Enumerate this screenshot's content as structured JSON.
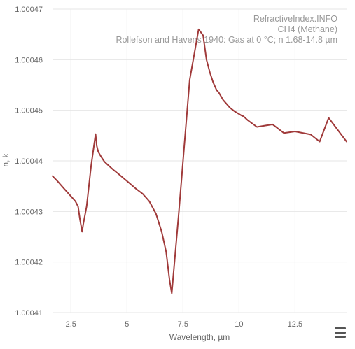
{
  "chart_data": {
    "type": "line",
    "watermark": [
      "RefractiveIndex.INFO",
      "CH4 (Methane)",
      "Rollefson and Havens 1940: Gas at 0 °C; n 1.68-14.8 µm"
    ],
    "xlabel": "Wavelength, µm",
    "ylabel": "n, k",
    "xlim": [
      1.68,
      14.8
    ],
    "ylim": [
      1.00041,
      1.00047
    ],
    "xticks": [
      2.5,
      5,
      7.5,
      10,
      12.5
    ],
    "xtick_labels": [
      "2.5",
      "5",
      "7.5",
      "10",
      "12.5"
    ],
    "yticks": [
      1.00041,
      1.00042,
      1.00043,
      1.00044,
      1.00045,
      1.00046,
      1.00047
    ],
    "ytick_labels": [
      "1.00041",
      "1.00042",
      "1.00043",
      "1.00044",
      "1.00045",
      "1.00046",
      "1.00047"
    ],
    "grid": true,
    "series": [
      {
        "color": "#a03a3a",
        "x": [
          1.68,
          1.9,
          2.2,
          2.5,
          2.7,
          2.82,
          2.9,
          2.96,
          3.0,
          3.05,
          3.2,
          3.4,
          3.6,
          3.65,
          3.72,
          3.85,
          4.0,
          4.2,
          4.4,
          4.6,
          5.0,
          5.4,
          5.7,
          6.0,
          6.3,
          6.55,
          6.75,
          6.9,
          7.0,
          7.3,
          7.8,
          8.2,
          8.4,
          8.55,
          8.7,
          8.85,
          9.0,
          9.1,
          9.3,
          9.5,
          9.6,
          9.8,
          10.1,
          10.2,
          10.4,
          10.8,
          11.2,
          11.5,
          12.0,
          12.5,
          13.2,
          13.6,
          14.0,
          14.8
        ],
        "y": [
          1.000437,
          1.000436,
          1.0004345,
          1.000433,
          1.000432,
          1.000431,
          1.0004285,
          1.000427,
          1.000426,
          1.0004275,
          1.000431,
          1.000439,
          1.0004453,
          1.000443,
          1.0004418,
          1.0004408,
          1.0004398,
          1.000439,
          1.0004382,
          1.0004375,
          1.000436,
          1.0004345,
          1.0004335,
          1.000432,
          1.0004295,
          1.000426,
          1.000422,
          1.0004165,
          1.0004138,
          1.000429,
          1.000456,
          1.000466,
          1.0004648,
          1.00046,
          1.0004575,
          1.0004555,
          1.000454,
          1.0004535,
          1.000452,
          1.000451,
          1.0004505,
          1.0004498,
          1.000449,
          1.0004488,
          1.000448,
          1.0004467,
          1.000447,
          1.0004472,
          1.0004455,
          1.0004458,
          1.0004452,
          1.0004438,
          1.0004485,
          1.0004438
        ]
      }
    ]
  }
}
